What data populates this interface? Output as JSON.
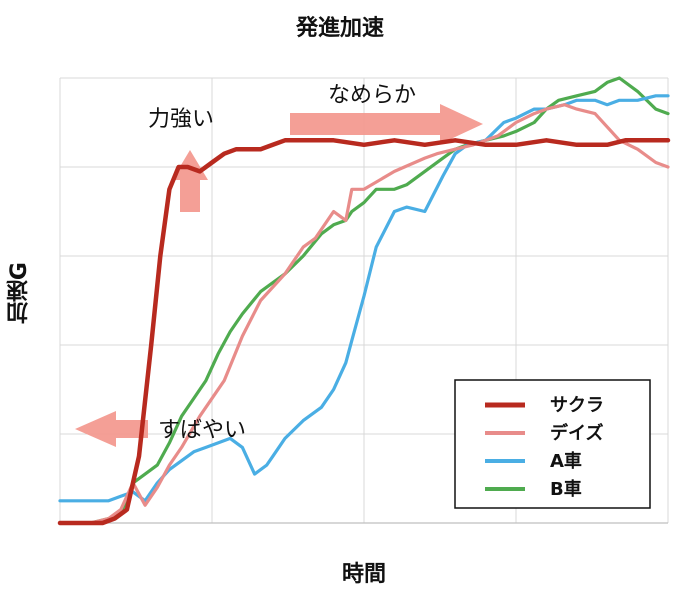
{
  "chart_data": {
    "type": "line",
    "title": "発進加速",
    "xlabel": "時間",
    "ylabel": "加速G",
    "xlim": [
      0,
      100
    ],
    "ylim": [
      0,
      100
    ],
    "grid": true,
    "legend_position": "bottom-right",
    "series": [
      {
        "name": "サクラ",
        "color": "#b82a1f",
        "x": [
          0,
          7,
          9,
          11,
          13,
          15,
          16.5,
          18,
          19.5,
          21,
          23,
          25,
          27,
          29,
          31,
          33,
          35,
          37,
          38.5,
          40,
          45,
          50,
          55,
          60,
          65,
          70,
          75,
          80,
          85,
          90,
          93,
          96,
          100
        ],
        "y": [
          0,
          0,
          1,
          3,
          15,
          40,
          60,
          75,
          80,
          80,
          79,
          81,
          83,
          84,
          84,
          84,
          85,
          86,
          86,
          86,
          86,
          85,
          86,
          85,
          86,
          85,
          85,
          86,
          85,
          85,
          86,
          86,
          86
        ]
      },
      {
        "name": "デイズ",
        "color": "#e88c8a",
        "x": [
          0,
          5,
          8,
          10,
          12,
          14,
          16,
          18,
          20,
          23,
          27,
          30,
          33,
          37,
          40,
          42,
          45,
          47,
          48,
          50,
          55,
          60,
          62,
          65,
          68,
          72,
          75,
          78,
          80,
          83,
          85,
          88,
          90,
          92,
          95,
          98,
          100
        ],
        "y": [
          0,
          0,
          1,
          3,
          9,
          4,
          8,
          13,
          17,
          24,
          32,
          42,
          50,
          56,
          62,
          64,
          70,
          68,
          75,
          75,
          79,
          82,
          83,
          84,
          85,
          87,
          90,
          92,
          93,
          94,
          93,
          92,
          89,
          86,
          84,
          81,
          80
        ]
      },
      {
        "name": "A車",
        "color": "#4aaee4",
        "x": [
          0,
          5,
          8,
          10,
          12,
          14,
          16,
          18,
          20,
          22,
          24,
          26,
          28,
          30,
          32,
          34,
          35,
          37,
          40,
          43,
          45,
          47,
          48,
          50,
          52,
          55,
          57,
          60,
          63,
          65,
          67,
          70,
          73,
          75,
          78,
          80,
          83,
          85,
          88,
          90,
          92,
          95,
          98,
          100
        ],
        "y": [
          5,
          5,
          5,
          6,
          7,
          5,
          9,
          12,
          14,
          16,
          17,
          18,
          19,
          17,
          11,
          13,
          15,
          19,
          23,
          26,
          30,
          36,
          41,
          51,
          62,
          70,
          71,
          70,
          78,
          83,
          85,
          86,
          90,
          91,
          93,
          93,
          94,
          95,
          95,
          94,
          95,
          95,
          96,
          96
        ]
      },
      {
        "name": "B車",
        "color": "#4fab4f",
        "x": [
          0,
          5,
          8,
          10,
          12,
          14,
          16,
          18,
          20,
          22,
          24,
          26,
          28,
          30,
          33,
          37,
          40,
          43,
          45,
          47,
          48,
          50,
          52,
          55,
          57,
          60,
          63,
          65,
          67,
          70,
          73,
          75,
          78,
          80,
          82,
          85,
          88,
          90,
          92,
          95,
          98,
          100
        ],
        "y": [
          0,
          0,
          1,
          2,
          9,
          11,
          13,
          18,
          24,
          28,
          32,
          38,
          43,
          47,
          52,
          56,
          60,
          65,
          67,
          68,
          70,
          72,
          75,
          75,
          76,
          79,
          82,
          84,
          85,
          86,
          87,
          88,
          90,
          93,
          95,
          96,
          97,
          99,
          100,
          97,
          93,
          92
        ]
      }
    ],
    "annotations": [
      {
        "text": "力強い",
        "arrow": "up"
      },
      {
        "text": "なめらか",
        "arrow": "right"
      },
      {
        "text": "すばやい",
        "arrow": "left"
      }
    ]
  }
}
